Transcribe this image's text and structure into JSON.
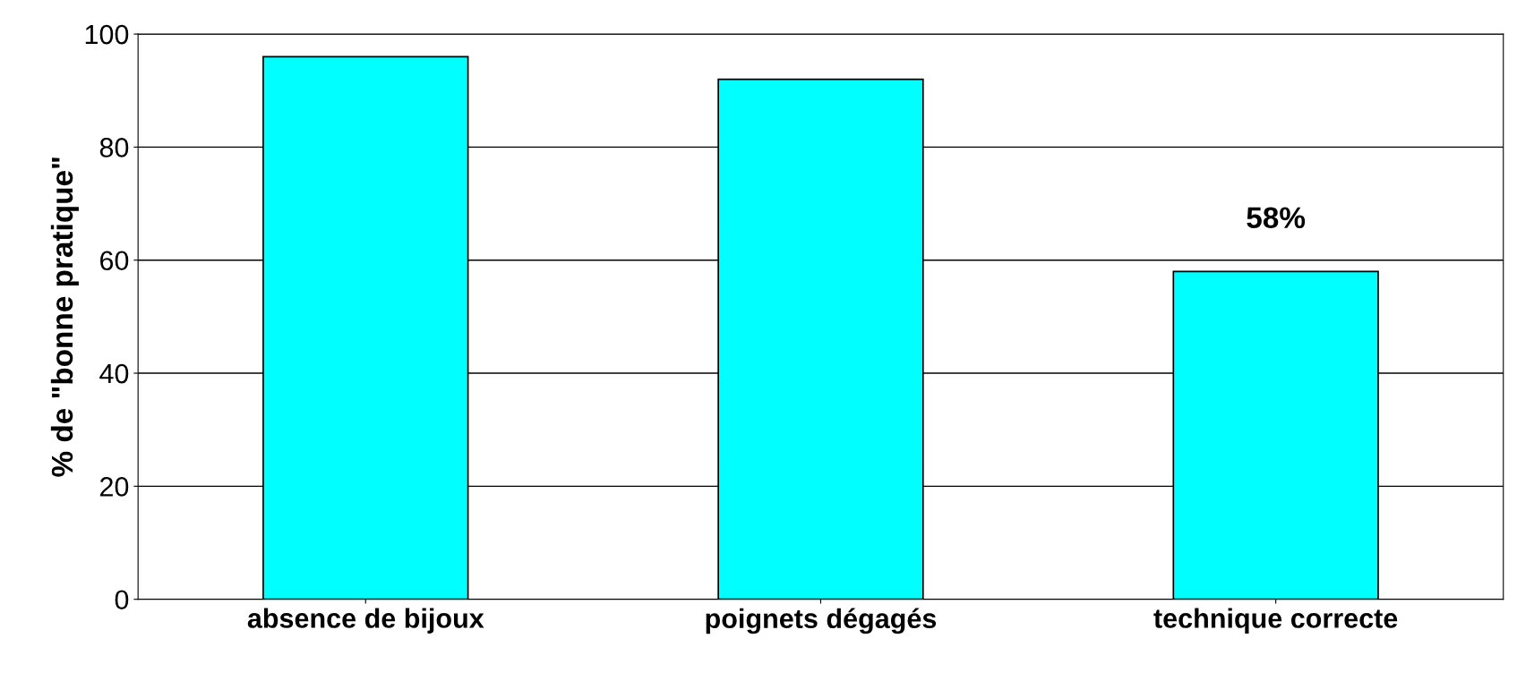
{
  "chart_data": {
    "type": "bar",
    "ylabel": "% de \"bonne pratique\"",
    "categories": [
      "absence de bijoux",
      "poignets dégagés",
      "technique correcte"
    ],
    "values": [
      96,
      92,
      58
    ],
    "color": "#00ffff",
    "value_labels": [
      null,
      null,
      "58%"
    ],
    "ylim": [
      0,
      100
    ],
    "yticks": [
      0,
      20,
      40,
      60,
      80,
      100
    ],
    "grid": "y"
  }
}
